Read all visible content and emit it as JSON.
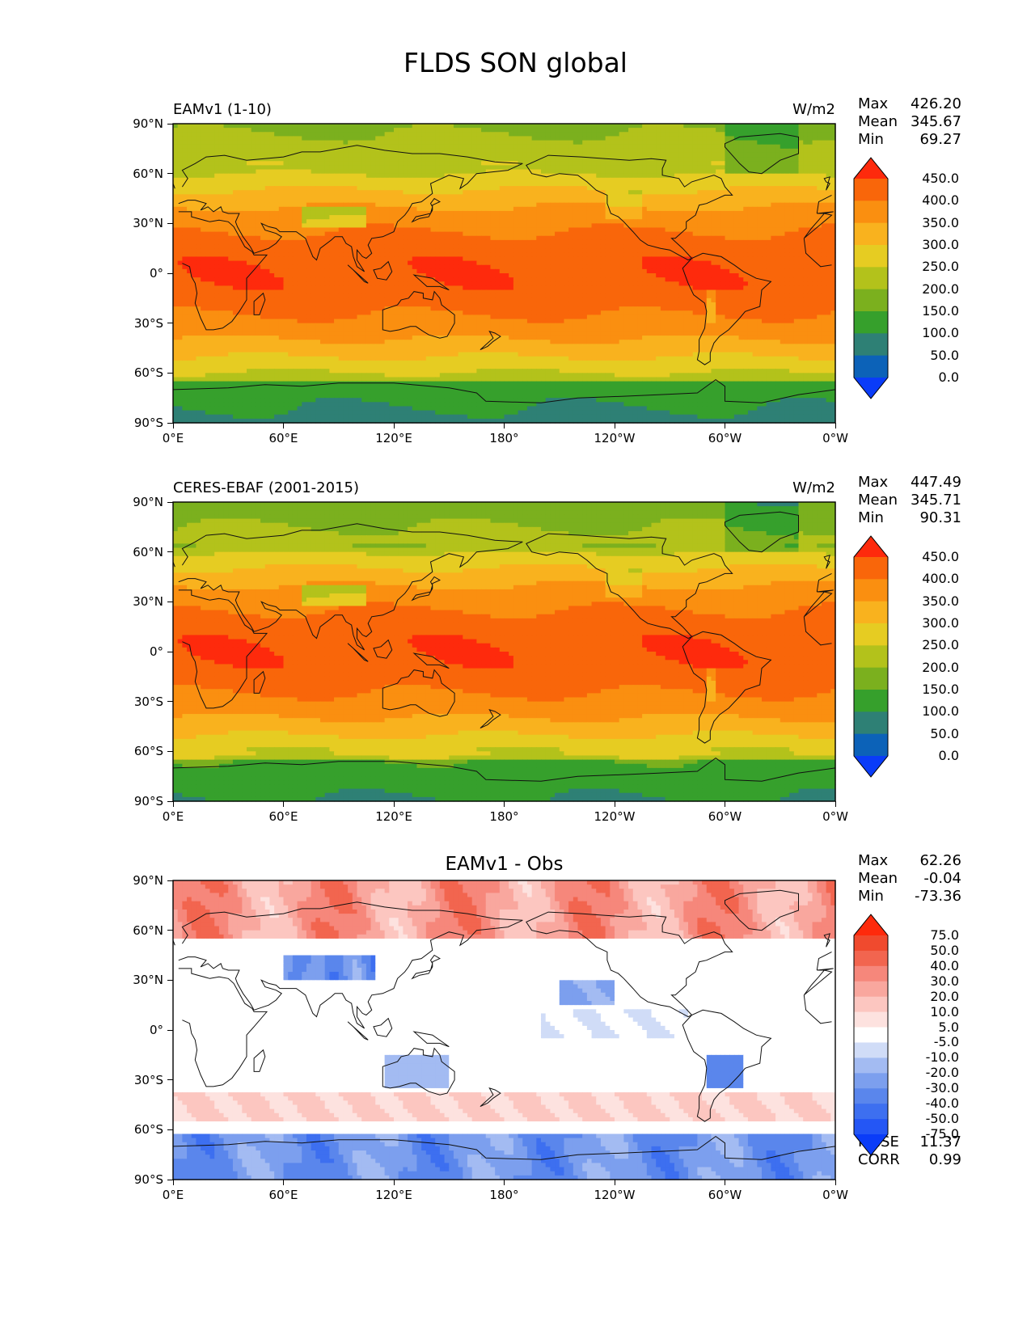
{
  "figure": {
    "title": "FLDS SON global"
  },
  "panels": [
    {
      "id": "model",
      "left_label": "EAMv1 (1-10)",
      "right_label": "W/m2",
      "center_label": "",
      "stats": [
        {
          "name": "Max",
          "value": "426.20"
        },
        {
          "name": "Mean",
          "value": "345.67"
        },
        {
          "name": "Min",
          "value": "69.27"
        }
      ],
      "colorbar": {
        "levels": [
          "0.0",
          "50.0",
          "100.0",
          "150.0",
          "200.0",
          "250.0",
          "300.0",
          "350.0",
          "400.0",
          "450.0"
        ],
        "colors": [
          "#0a3cf8",
          "#0c62b8",
          "#2e8075",
          "#36a02c",
          "#7bb01e",
          "#b3c21b",
          "#e6cc22",
          "#f9b21e",
          "#fa8f10",
          "#f9660a",
          "#fe2a0c"
        ]
      }
    },
    {
      "id": "obs",
      "left_label": "CERES-EBAF (2001-2015)",
      "right_label": "W/m2",
      "center_label": "",
      "stats": [
        {
          "name": "Max",
          "value": "447.49"
        },
        {
          "name": "Mean",
          "value": "345.71"
        },
        {
          "name": "Min",
          "value": "90.31"
        }
      ],
      "colorbar": {
        "levels": [
          "0.0",
          "50.0",
          "100.0",
          "150.0",
          "200.0",
          "250.0",
          "300.0",
          "350.0",
          "400.0",
          "450.0"
        ],
        "colors": [
          "#0a3cf8",
          "#0c62b8",
          "#2e8075",
          "#36a02c",
          "#7bb01e",
          "#b3c21b",
          "#e6cc22",
          "#f9b21e",
          "#fa8f10",
          "#f9660a",
          "#fe2a0c"
        ]
      }
    },
    {
      "id": "diff",
      "left_label": "",
      "right_label": "",
      "center_label": "EAMv1 - Obs",
      "stats": [
        {
          "name": "Max",
          "value": "62.26"
        },
        {
          "name": "Mean",
          "value": "-0.04"
        },
        {
          "name": "Min",
          "value": "-73.36"
        }
      ],
      "extra_stats": [
        {
          "name": "RMSE",
          "value": "11.37"
        },
        {
          "name": "CORR",
          "value": "0.99"
        }
      ],
      "colorbar": {
        "levels": [
          "-75.0",
          "-50.0",
          "-40.0",
          "-30.0",
          "-20.0",
          "-10.0",
          "-5.0",
          "5.0",
          "10.0",
          "20.0",
          "30.0",
          "40.0",
          "50.0",
          "75.0"
        ],
        "colors": [
          "#0a3cf8",
          "#2456f5",
          "#3d6ff0",
          "#5a86ec",
          "#7c9fee",
          "#a3bbf2",
          "#d0dcf7",
          "#ffffff",
          "#fde2df",
          "#fcc6c0",
          "#f9a79e",
          "#f6877b",
          "#f2654f",
          "#f04a2e",
          "#fe2a0c"
        ]
      }
    }
  ],
  "axes": {
    "y_ticks": [
      "90°N",
      "60°N",
      "30°N",
      "0°",
      "30°S",
      "60°S",
      "90°S"
    ],
    "x_ticks": [
      "0°E",
      "60°E",
      "120°E",
      "180°",
      "120°W",
      "60°W",
      "0°W"
    ]
  }
}
